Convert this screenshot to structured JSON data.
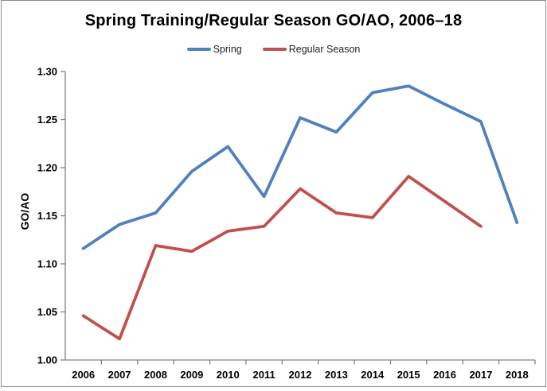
{
  "window": {
    "background": "#ffffff",
    "border_color": "#8b8b8b"
  },
  "chart": {
    "title": "Spring Training/Regular Season GO/AO, 2006–18",
    "y_axis_title": "GO/AO",
    "axis_color": "#808080",
    "text_color": "#000000"
  },
  "chart_data": {
    "type": "line",
    "title": "Spring Training/Regular Season GO/AO, 2006–18",
    "xlabel": "",
    "ylabel": "GO/AO",
    "ylim": [
      1.0,
      1.3
    ],
    "ytick_step": 0.05,
    "ytick_labels": [
      "1.00",
      "1.05",
      "1.10",
      "1.15",
      "1.20",
      "1.25",
      "1.30"
    ],
    "grid": false,
    "legend_position": "top",
    "categories": [
      "2006",
      "2007",
      "2008",
      "2009",
      "2010",
      "2011",
      "2012",
      "2013",
      "2014",
      "2015",
      "2016",
      "2017",
      "2018"
    ],
    "series": [
      {
        "name": "Spring",
        "color": "#4F81BD",
        "values": [
          1.116,
          1.141,
          1.153,
          1.196,
          1.222,
          1.17,
          1.252,
          1.237,
          1.278,
          1.285,
          1.266,
          1.248,
          1.143
        ]
      },
      {
        "name": "Regular Season",
        "color": "#C0504D",
        "values": [
          1.046,
          1.022,
          1.119,
          1.113,
          1.134,
          1.139,
          1.178,
          1.153,
          1.148,
          1.191,
          1.165,
          1.139,
          null
        ]
      }
    ]
  }
}
